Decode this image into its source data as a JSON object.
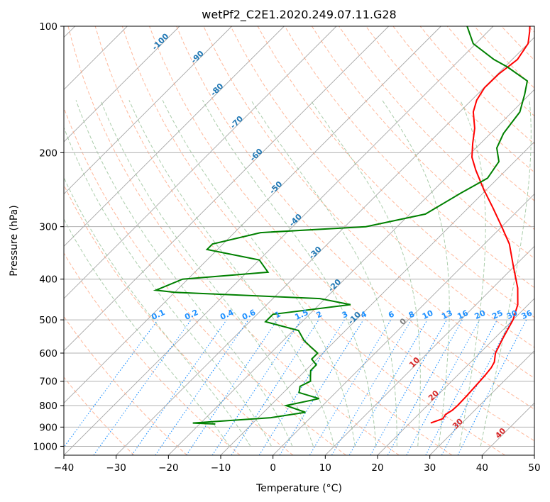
{
  "chart_data": {
    "type": "line",
    "subtype": "skew-T log-P sounding",
    "title": "wetPf2_C2E1.2020.249.07.11.G28",
    "xlabel": "Temperature (°C)",
    "ylabel": "Pressure (hPa)",
    "xlim": [
      -40,
      50
    ],
    "ylim": [
      1050,
      100
    ],
    "y_scale": "log",
    "grid": true,
    "x_ticks": [
      "−40",
      "−30",
      "−20",
      "−10",
      "0",
      "10",
      "20",
      "30",
      "40",
      "50"
    ],
    "y_ticks": [
      "100",
      "200",
      "300",
      "400",
      "500",
      "600",
      "700",
      "800",
      "900",
      "1000"
    ],
    "series": [
      {
        "role": "temperature",
        "color": "#ff0000",
        "points": [
          [
            24.0,
            880
          ],
          [
            25.5,
            860
          ],
          [
            25.2,
            840
          ],
          [
            25.7,
            820
          ],
          [
            25.8,
            800
          ],
          [
            25.7,
            760
          ],
          [
            25.5,
            720
          ],
          [
            25.3,
            680
          ],
          [
            25.0,
            650
          ],
          [
            24.5,
            630
          ],
          [
            23.0,
            600
          ],
          [
            21.5,
            550
          ],
          [
            20.0,
            500
          ],
          [
            18.0,
            460
          ],
          [
            14.8,
            420
          ],
          [
            9.5,
            370
          ],
          [
            4.8,
            330
          ],
          [
            0.0,
            300
          ],
          [
            -5.4,
            270
          ],
          [
            -10.5,
            245
          ],
          [
            -15.8,
            220
          ],
          [
            -19.0,
            205
          ],
          [
            -21.5,
            190
          ],
          [
            -24.0,
            175
          ],
          [
            -27.4,
            160
          ],
          [
            -29.0,
            150
          ],
          [
            -29.9,
            140
          ],
          [
            -29.8,
            130
          ],
          [
            -29.0,
            120
          ],
          [
            -30.0,
            110
          ],
          [
            -32.0,
            103
          ],
          [
            -33.0,
            100
          ]
        ]
      },
      {
        "role": "dewpoint",
        "color": "#008000",
        "points": [
          [
            -17.0,
            885
          ],
          [
            -21.5,
            880
          ],
          [
            -7.6,
            855
          ],
          [
            -2.0,
            830
          ],
          [
            -7.0,
            800
          ],
          [
            -2.0,
            770
          ],
          [
            -7.0,
            745
          ],
          [
            -8.0,
            720
          ],
          [
            -7.0,
            700
          ],
          [
            -8.0,
            680
          ],
          [
            -9.0,
            660
          ],
          [
            -9.0,
            640
          ],
          [
            -11.0,
            620
          ],
          [
            -11.0,
            600
          ],
          [
            -13.5,
            580
          ],
          [
            -16.0,
            560
          ],
          [
            -19.0,
            530
          ],
          [
            -27.0,
            505
          ],
          [
            -27.0,
            485
          ],
          [
            -14.0,
            460
          ],
          [
            -21.0,
            445
          ],
          [
            -50.0,
            430
          ],
          [
            -54.0,
            425
          ],
          [
            -51.0,
            400
          ],
          [
            -36.0,
            385
          ],
          [
            -40.0,
            360
          ],
          [
            -52.0,
            340
          ],
          [
            -52.0,
            330
          ],
          [
            -45.0,
            310
          ],
          [
            -26.0,
            300
          ],
          [
            -17.0,
            280
          ],
          [
            -14.3,
            250
          ],
          [
            -12.0,
            230
          ],
          [
            -13.0,
            210
          ],
          [
            -16.0,
            195
          ],
          [
            -17.5,
            180
          ],
          [
            -18.5,
            160
          ],
          [
            -21.0,
            145
          ],
          [
            -23.0,
            135
          ],
          [
            -29.5,
            125
          ],
          [
            -33.5,
            120
          ],
          [
            -40.5,
            110
          ],
          [
            -45.0,
            100
          ]
        ]
      }
    ],
    "isotherm_labels_skewed": [
      "-100",
      "-90",
      "-80",
      "-70",
      "-60",
      "-50",
      "-40",
      "-30",
      "-20",
      "-10",
      "0",
      "10",
      "20",
      "30",
      "40"
    ],
    "mixing_ratio_labels": [
      "0.1",
      "0.2",
      "0.4",
      "0.6",
      "1",
      "1.5",
      "2",
      "3",
      "4",
      "6",
      "8",
      "10",
      "13",
      "16",
      "20",
      "25",
      "30",
      "36"
    ],
    "colors": {
      "temperature": "#ff0000",
      "dewpoint": "#008000",
      "dry_adiabat": "#ffa07a",
      "moist_adiabat": "#8fbc8f",
      "mixing_ratio": "#1e90ff",
      "isotherm": "#808080"
    }
  }
}
